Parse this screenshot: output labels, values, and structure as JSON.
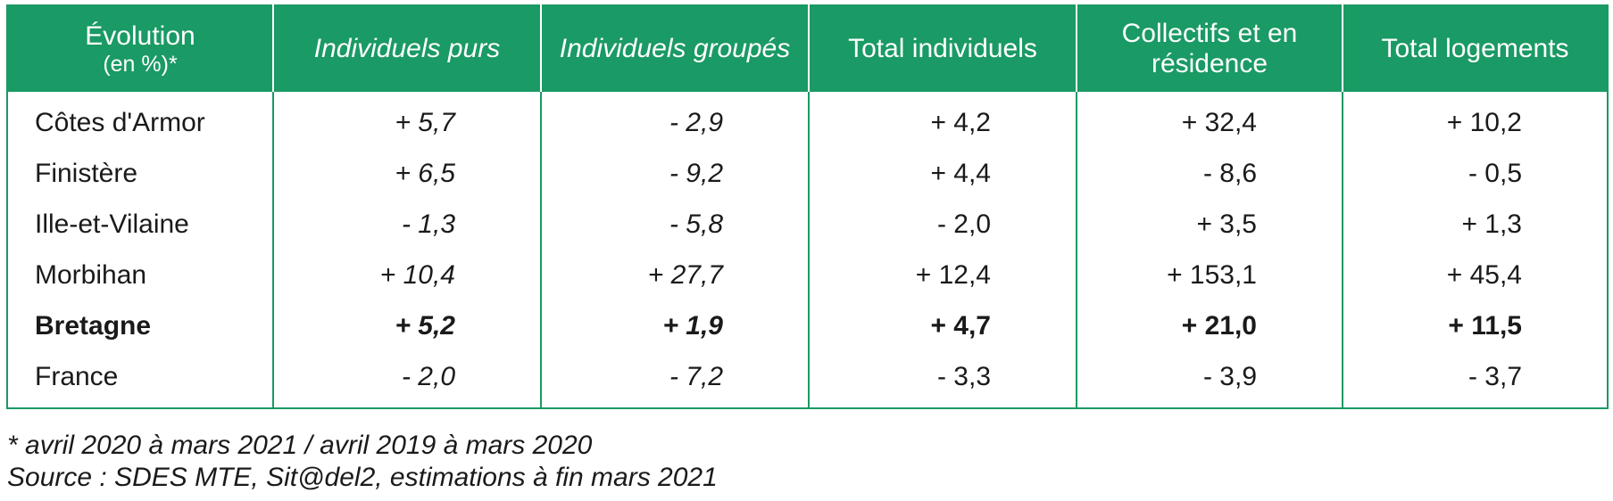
{
  "table": {
    "headers": [
      {
        "line1": "Évolution",
        "line2": "(en %)*"
      },
      {
        "label": "Individuels purs"
      },
      {
        "label": "Individuels groupés"
      },
      {
        "label": "Total individuels"
      },
      {
        "label": "Collectifs et en résidence"
      },
      {
        "label": "Total logements"
      }
    ],
    "rows": [
      {
        "label": "Côtes d'Armor",
        "values": [
          "+ 5,7",
          "- 2,9",
          "+ 4,2",
          "+ 32,4",
          "+ 10,2"
        ]
      },
      {
        "label": "Finistère",
        "values": [
          "+ 6,5",
          "- 9,2",
          "+ 4,4",
          "- 8,6",
          "- 0,5"
        ]
      },
      {
        "label": "Ille-et-Vilaine",
        "values": [
          "- 1,3",
          "- 5,8",
          "- 2,0",
          "+ 3,5",
          "+ 1,3"
        ]
      },
      {
        "label": "Morbihan",
        "values": [
          "+ 10,4",
          "+ 27,7",
          "+ 12,4",
          "+ 153,1",
          "+ 45,4"
        ]
      },
      {
        "label": "Bretagne",
        "values": [
          "+ 5,2",
          "+ 1,9",
          "+ 4,7",
          "+ 21,0",
          "+ 11,5"
        ]
      },
      {
        "label": "France",
        "values": [
          "- 2,0",
          "- 7,2",
          "- 3,3",
          "- 3,9",
          "- 3,7"
        ]
      }
    ]
  },
  "notes": {
    "footnote": "* avril 2020 à mars 2021 / avril 2019 à mars 2020",
    "source": "Source : SDES MTE, Sit@del2, estimations à fin mars 2021"
  },
  "colors": {
    "header_background": "#1a9a64",
    "header_text": "#ffffff",
    "border": "#1a9a64"
  }
}
